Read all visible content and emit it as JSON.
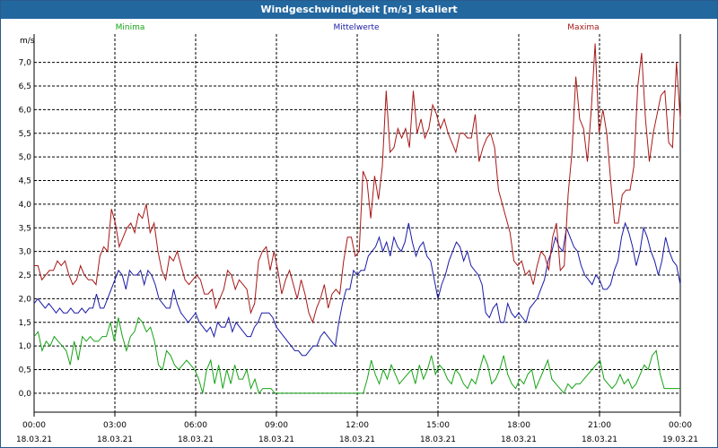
{
  "window": {
    "title": "Windgeschwindigkeit [m/s] skaliert"
  },
  "chart_data": {
    "type": "line",
    "title": "Windgeschwindigkeit [m/s] skaliert",
    "ylabel": "m/s",
    "ylim": [
      -0.4,
      7.6
    ],
    "xlim_hours": [
      0,
      24
    ],
    "grid": true,
    "legend_position": "top",
    "yticks": [
      0.0,
      0.5,
      1.0,
      1.5,
      2.0,
      2.5,
      3.0,
      3.5,
      4.0,
      4.5,
      5.0,
      5.5,
      6.0,
      6.5,
      7.0
    ],
    "ytick_labels": [
      "0,0",
      "0,5",
      "1,0",
      "1,5",
      "2,0",
      "2,5",
      "3,0",
      "3,5",
      "4,0",
      "4,5",
      "5,0",
      "5,5",
      "6,0",
      "6,5",
      "7,0"
    ],
    "xticks": [
      {
        "time": "00:00",
        "date": "18.03.21"
      },
      {
        "time": "03:00",
        "date": "18.03.21"
      },
      {
        "time": "06:00",
        "date": "18.03.21"
      },
      {
        "time": "09:00",
        "date": "18.03.21"
      },
      {
        "time": "12:00",
        "date": "18.03.21"
      },
      {
        "time": "15:00",
        "date": "18.03.21"
      },
      {
        "time": "18:00",
        "date": "18.03.21"
      },
      {
        "time": "21:00",
        "date": "18.03.21"
      },
      {
        "time": "00:00",
        "date": "19.03.21"
      }
    ],
    "series": [
      {
        "name": "Minima",
        "color": "#16a316",
        "values": [
          1.2,
          1.3,
          0.9,
          1.1,
          1.0,
          1.2,
          1.1,
          1.0,
          0.9,
          0.6,
          1.1,
          0.7,
          1.2,
          1.1,
          1.2,
          1.1,
          1.1,
          1.2,
          1.2,
          1.5,
          1.1,
          1.6,
          1.2,
          0.9,
          1.2,
          1.3,
          1.6,
          1.5,
          1.3,
          1.4,
          1.1,
          0.6,
          0.5,
          0.9,
          0.8,
          0.6,
          0.5,
          0.6,
          0.7,
          0.6,
          0.5,
          0.3,
          0.0,
          0.5,
          0.7,
          0.2,
          0.6,
          0.1,
          0.5,
          0.2,
          0.6,
          0.3,
          0.3,
          0.5,
          0.1,
          0.3,
          0.0,
          0.1,
          0.1,
          0.1,
          0.0,
          0.0,
          0.0,
          0.0,
          0.0,
          0.0,
          0.0,
          0.0,
          0.0,
          0.0,
          0.0,
          0.0,
          0.0,
          0.0,
          0.0,
          0.0,
          0.0,
          0.0,
          0.0,
          0.0,
          0.0,
          0.0,
          0.0,
          0.3,
          0.7,
          0.4,
          0.2,
          0.5,
          0.3,
          0.6,
          0.4,
          0.2,
          0.3,
          0.4,
          0.5,
          0.2,
          0.6,
          0.3,
          0.5,
          0.8,
          0.4,
          0.6,
          0.5,
          0.3,
          0.2,
          0.5,
          0.4,
          0.2,
          0.1,
          0.3,
          0.2,
          0.5,
          0.8,
          0.6,
          0.2,
          0.3,
          0.5,
          0.8,
          0.4,
          0.2,
          0.1,
          0.3,
          0.2,
          0.4,
          0.5,
          0.1,
          0.3,
          0.5,
          0.7,
          0.3,
          0.2,
          0.1,
          0.0,
          0.2,
          0.1,
          0.2,
          0.2,
          0.3,
          0.4,
          0.5,
          0.6,
          0.7,
          0.3,
          0.2,
          0.1,
          0.2,
          0.4,
          0.2,
          0.3,
          0.1,
          0.2,
          0.4,
          0.6,
          0.5,
          0.8,
          0.9,
          0.4,
          0.1,
          0.1,
          0.1,
          0.1,
          0.1
        ]
      },
      {
        "name": "Mittelwerte",
        "color": "#1a1aa8",
        "values": [
          1.9,
          2.0,
          1.9,
          1.8,
          1.9,
          1.8,
          1.7,
          1.8,
          1.7,
          1.7,
          1.8,
          1.7,
          1.7,
          1.8,
          1.7,
          1.8,
          1.8,
          2.1,
          1.8,
          1.8,
          2.0,
          2.2,
          2.4,
          2.6,
          2.5,
          2.2,
          2.6,
          2.5,
          2.5,
          2.6,
          2.3,
          2.6,
          2.5,
          2.3,
          2.0,
          1.9,
          1.8,
          1.8,
          2.2,
          1.9,
          1.7,
          1.6,
          1.5,
          1.6,
          1.7,
          1.5,
          1.4,
          1.3,
          1.4,
          1.2,
          1.5,
          1.4,
          1.4,
          1.6,
          1.3,
          1.5,
          1.4,
          1.3,
          1.2,
          1.2,
          1.4,
          1.5,
          1.7,
          1.7,
          1.7,
          1.6,
          1.4,
          1.3,
          1.2,
          1.1,
          1.0,
          0.9,
          0.9,
          0.8,
          0.8,
          0.9,
          1.0,
          1.0,
          1.2,
          1.3,
          1.2,
          1.1,
          1.0,
          1.5,
          1.9,
          2.2,
          2.2,
          2.6,
          2.5,
          2.6,
          2.6,
          2.9,
          3.0,
          3.1,
          3.3,
          3.0,
          3.2,
          2.9,
          3.3,
          3.1,
          3.0,
          3.2,
          3.6,
          3.2,
          2.9,
          3.1,
          3.2,
          2.9,
          2.8,
          2.4,
          2.0,
          2.3,
          2.5,
          2.8,
          3.0,
          3.2,
          3.1,
          2.8,
          3.0,
          2.7,
          2.6,
          2.5,
          2.3,
          1.7,
          1.6,
          1.8,
          1.9,
          1.5,
          1.5,
          1.9,
          1.7,
          1.6,
          1.7,
          1.6,
          1.5,
          1.8,
          1.9,
          2.0,
          2.2,
          2.4,
          2.8,
          3.0,
          3.3,
          3.1,
          3.0,
          3.5,
          3.3,
          3.1,
          3.0,
          2.7,
          2.5,
          2.4,
          2.3,
          2.5,
          2.4,
          2.2,
          2.2,
          2.3,
          2.6,
          2.8,
          3.3,
          3.6,
          3.4,
          3.1,
          2.7,
          3.0,
          3.5,
          3.3,
          3.0,
          2.8,
          2.5,
          2.8,
          3.3,
          3.0,
          2.8,
          2.7,
          2.3
        ]
      },
      {
        "name": "Maxima",
        "color": "#a81818",
        "values": [
          2.7,
          2.7,
          2.4,
          2.5,
          2.6,
          2.6,
          2.8,
          2.7,
          2.8,
          2.5,
          2.3,
          2.4,
          2.7,
          2.5,
          2.4,
          2.4,
          2.3,
          2.9,
          3.1,
          3.0,
          3.9,
          3.6,
          3.1,
          3.3,
          3.5,
          3.6,
          3.4,
          3.8,
          3.7,
          4.0,
          3.4,
          3.6,
          3.0,
          2.6,
          2.4,
          2.9,
          2.8,
          3.0,
          2.7,
          2.4,
          2.3,
          2.4,
          2.5,
          2.4,
          2.1,
          2.1,
          2.2,
          1.8,
          2.0,
          2.2,
          2.6,
          2.5,
          2.2,
          2.4,
          2.3,
          2.2,
          1.7,
          1.9,
          2.8,
          3.0,
          3.1,
          2.6,
          3.0,
          2.6,
          2.1,
          2.4,
          2.6,
          2.3,
          2.0,
          2.4,
          2.1,
          1.7,
          1.5,
          1.8,
          2.0,
          2.3,
          1.8,
          2.1,
          2.2,
          2.1,
          2.8,
          3.3,
          3.3,
          2.9,
          3.0,
          4.7,
          4.5,
          3.7,
          4.6,
          4.1,
          4.8,
          6.4,
          5.1,
          5.2,
          5.6,
          5.4,
          5.6,
          5.2,
          6.4,
          5.5,
          5.8,
          5.4,
          5.6,
          6.1,
          5.9,
          5.6,
          5.8,
          5.5,
          5.3,
          5.1,
          5.5,
          5.5,
          5.4,
          5.4,
          5.9,
          4.9,
          5.2,
          5.4,
          5.5,
          5.2,
          4.3,
          4.0,
          3.7,
          3.4,
          2.8,
          2.7,
          2.8,
          2.5,
          2.6,
          2.3,
          2.7,
          3.0,
          2.9,
          2.6,
          3.3,
          3.6,
          2.6,
          2.7,
          4.2,
          5.1,
          6.7,
          5.8,
          5.6,
          4.9,
          6.0,
          7.4,
          5.5,
          6.0,
          5.5,
          4.5,
          3.6,
          3.6,
          4.2,
          4.3,
          4.3,
          4.8,
          6.5,
          7.2,
          5.8,
          4.9,
          5.5,
          5.9,
          6.3,
          6.4,
          5.3,
          5.2,
          7.0,
          5.8
        ]
      }
    ]
  }
}
